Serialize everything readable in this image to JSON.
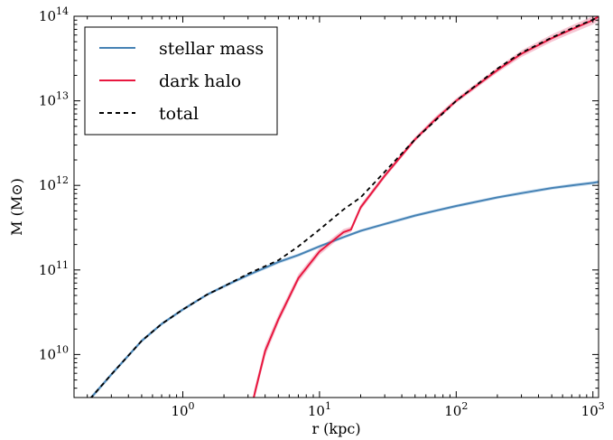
{
  "chart_data": {
    "type": "line",
    "xlabel": "r (kpc)",
    "ylabel": "M (M⊙)",
    "xscale": "log",
    "yscale": "log",
    "xlim": [
      0.16,
      1100
    ],
    "ylim": [
      3100000000.0,
      100000000000000.0
    ],
    "grid": false,
    "legend_position": "top-left",
    "x_ticks": [
      {
        "value": 1,
        "base": "10",
        "exp": "0"
      },
      {
        "value": 10,
        "base": "10",
        "exp": "1"
      },
      {
        "value": 100,
        "base": "10",
        "exp": "2"
      },
      {
        "value": 1000,
        "base": "10",
        "exp": "3"
      }
    ],
    "y_ticks": [
      {
        "value": 10000000000.0,
        "base": "10",
        "exp": "10"
      },
      {
        "value": 100000000000.0,
        "base": "10",
        "exp": "11"
      },
      {
        "value": 1000000000000.0,
        "base": "10",
        "exp": "12"
      },
      {
        "value": 10000000000000.0,
        "base": "10",
        "exp": "13"
      },
      {
        "value": 100000000000000.0,
        "base": "10",
        "exp": "14"
      }
    ],
    "series": [
      {
        "name": "stellar mass",
        "color": "#4682b4",
        "band_color": "#c6dcef",
        "style": "solid",
        "x": [
          0.21,
          0.3,
          0.5,
          0.7,
          1,
          1.5,
          2,
          3,
          5,
          7,
          10,
          15,
          20,
          30,
          50,
          70,
          100,
          200,
          300,
          500,
          700,
          1000,
          1100
        ],
        "y": [
          3000000000.0,
          5800000000.0,
          14500000000.0,
          23000000000.0,
          34000000000.0,
          51000000000.0,
          64000000000.0,
          87000000000.0,
          124000000000.0,
          150000000000.0,
          190000000000.0,
          245000000000.0,
          290000000000.0,
          350000000000.0,
          440000000000.0,
          500000000000.0,
          570000000000.0,
          720000000000.0,
          810000000000.0,
          930000000000.0,
          1000000000000.0,
          1070000000000.0,
          1100000000000.0
        ],
        "band_low": [
          2800000000.0,
          5500000000.0,
          13800000000.0,
          22000000000.0,
          32500000000.0,
          49000000000.0,
          61000000000.0,
          83000000000.0,
          118000000000.0,
          143000000000.0,
          182000000000.0,
          235000000000.0,
          278000000000.0,
          335000000000.0,
          420000000000.0,
          480000000000.0,
          545000000000.0,
          690000000000.0,
          770000000000.0,
          890000000000.0,
          950000000000.0,
          1020000000000.0,
          1050000000000.0
        ],
        "band_high": [
          3200000000.0,
          6100000000.0,
          15200000000.0,
          24000000000.0,
          35500000000.0,
          53000000000.0,
          67000000000.0,
          91000000000.0,
          130000000000.0,
          157000000000.0,
          198000000000.0,
          255000000000.0,
          302000000000.0,
          365000000000.0,
          460000000000.0,
          520000000000.0,
          595000000000.0,
          750000000000.0,
          850000000000.0,
          970000000000.0,
          1050000000000.0,
          1120000000000.0,
          1150000000000.0
        ]
      },
      {
        "name": "dark halo",
        "color": "#e8173f",
        "band_color": "#f4bccb",
        "style": "solid",
        "x": [
          3.3,
          4,
          5,
          7,
          10,
          15,
          17,
          20,
          30,
          50,
          70,
          100,
          200,
          300,
          500,
          700,
          1000,
          1100
        ],
        "y": [
          3100000000.0,
          11000000000.0,
          26000000000.0,
          80000000000.0,
          165000000000.0,
          280000000000.0,
          300000000000.0,
          550000000000.0,
          1300000000000.0,
          3500000000000.0,
          6000000000000.0,
          10000000000000.0,
          23000000000000.0,
          36000000000000.0,
          55000000000000.0,
          70000000000000.0,
          90000000000000.0,
          100000000000000.0
        ],
        "band_low": [
          2700000000.0,
          9500000000.0,
          23000000000.0,
          72000000000.0,
          150000000000.0,
          260000000000.0,
          280000000000.0,
          510000000000.0,
          1220000000000.0,
          3300000000000.0,
          5600000000000.0,
          9400000000000.0,
          21500000000000.0,
          33000000000000.0,
          50000000000000.0,
          63000000000000.0,
          80000000000000.0,
          88000000000000.0
        ],
        "band_high": [
          3600000000.0,
          12800000000.0,
          29500000000.0,
          89000000000.0,
          182000000000.0,
          305000000000.0,
          325000000000.0,
          595000000000.0,
          1400000000000.0,
          3750000000000.0,
          6450000000000.0,
          10700000000000.0,
          24800000000000.0,
          39500000000000.0,
          61000000000000.0,
          78000000000000.0,
          100000000000000.0,
          112000000000000.0
        ]
      },
      {
        "name": "total",
        "color": "#000000",
        "style": "dashed",
        "x": [
          0.21,
          0.3,
          0.5,
          0.7,
          1,
          1.5,
          2,
          3,
          5,
          7,
          10,
          15,
          20,
          30,
          50,
          70,
          100,
          200,
          300,
          500,
          700,
          1000,
          1100
        ],
        "y": [
          3000000000.0,
          5800000000.0,
          14500000000.0,
          23000000000.0,
          34000000000.0,
          51000000000.0,
          64000000000.0,
          90000000000.0,
          130000000000.0,
          190000000000.0,
          300000000000.0,
          520000000000.0,
          720000000000.0,
          1450000000000.0,
          3500000000000.0,
          5800000000000.0,
          10000000000000.0,
          24000000000000.0,
          37000000000000.0,
          56000000000000.0,
          72000000000000.0,
          91000000000000.0,
          100000000000000.0
        ]
      }
    ]
  }
}
